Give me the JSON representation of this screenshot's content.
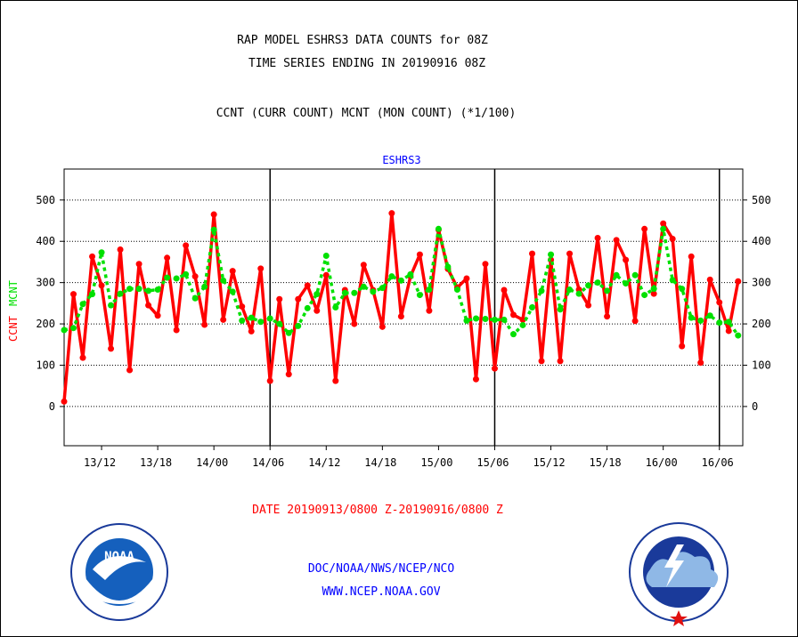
{
  "titles": {
    "line1": "RAP MODEL ESHRS3 DATA COUNTS for 08Z",
    "line2": "TIME SERIES ENDING IN 20190916 08Z",
    "line3": "CCNT (CURR COUNT) MCNT (MON COUNT) (*1/100)"
  },
  "footer": {
    "date_range": "DATE 20190913/0800 Z-20190916/0800 Z",
    "org": "DOC/NOAA/NWS/NCEP/NCO",
    "url": "WWW.NCEP.NOAA.GOV"
  },
  "logos": {
    "noaa_text": "NOAA",
    "noaa_ring": "NATIONAL OCEANIC AND ATMOSPHERIC ADMINISTRATION · U.S. DEPARTMENT OF COMMERCE",
    "nws_ring": "NATIONAL WEATHER SERVICE"
  },
  "colors": {
    "ccnt": "#ff0000",
    "mcnt": "#00e000",
    "title_blue": "#0000ff",
    "date_red": "#ff0000"
  },
  "chart_data": {
    "type": "line",
    "title": "ESHRS3",
    "ylabel_left": [
      "CCNT",
      "MCNT"
    ],
    "y_ticks": [
      0,
      100,
      200,
      300,
      400,
      500
    ],
    "ylim": [
      -95,
      575
    ],
    "x_tick_labels": [
      "13/12",
      "13/18",
      "14/00",
      "14/06",
      "14/12",
      "14/18",
      "15/00",
      "15/06",
      "15/12",
      "15/18",
      "16/00",
      "16/06"
    ],
    "x_tick_hours": [
      4,
      10,
      16,
      22,
      28,
      34,
      40,
      46,
      52,
      58,
      64,
      70
    ],
    "xlim_hours": [
      0,
      72.5
    ],
    "day_boundaries_hours": [
      22,
      46,
      70
    ],
    "grid": "horizontal dotted",
    "x_hours": [
      0,
      1,
      2,
      3,
      4,
      5,
      6,
      7,
      8,
      9,
      10,
      11,
      12,
      13,
      14,
      15,
      16,
      17,
      18,
      19,
      20,
      21,
      22,
      23,
      24,
      25,
      26,
      27,
      28,
      29,
      30,
      31,
      32,
      33,
      34,
      35,
      36,
      37,
      38,
      39,
      40,
      41,
      42,
      43,
      44,
      45,
      46,
      47,
      48,
      49,
      50,
      51,
      52,
      53,
      54,
      55,
      56,
      57,
      58,
      59,
      60,
      61,
      62,
      63,
      64,
      65,
      66,
      67,
      68,
      69,
      70,
      71,
      72
    ],
    "series": [
      {
        "name": "CCNT",
        "values": [
          12,
          272,
          118,
          363,
          293,
          140,
          380,
          88,
          345,
          245,
          220,
          360,
          185,
          390,
          315,
          198,
          465,
          210,
          328,
          242,
          182,
          334,
          62,
          260,
          78,
          260,
          293,
          232,
          318,
          62,
          282,
          200,
          343,
          282,
          193,
          468,
          218,
          315,
          368,
          232,
          428,
          333,
          288,
          310,
          66,
          345,
          92,
          282,
          222,
          210,
          370,
          110,
          355,
          110,
          370,
          283,
          245,
          408,
          218,
          403,
          355,
          207,
          430,
          273,
          443,
          406,
          146,
          363,
          106,
          307,
          252,
          183,
          303
        ]
      },
      {
        "name": "MCNT",
        "values": [
          185,
          190,
          248,
          272,
          373,
          245,
          273,
          285,
          285,
          280,
          283,
          312,
          310,
          320,
          262,
          290,
          428,
          305,
          278,
          208,
          215,
          205,
          213,
          200,
          178,
          195,
          238,
          272,
          365,
          240,
          275,
          275,
          290,
          278,
          287,
          315,
          305,
          320,
          270,
          283,
          430,
          338,
          283,
          208,
          213,
          212,
          210,
          210,
          175,
          197,
          240,
          280,
          368,
          235,
          283,
          273,
          293,
          300,
          280,
          318,
          298,
          318,
          270,
          285,
          430,
          306,
          285,
          215,
          208,
          220,
          203,
          205,
          172
        ]
      }
    ]
  }
}
